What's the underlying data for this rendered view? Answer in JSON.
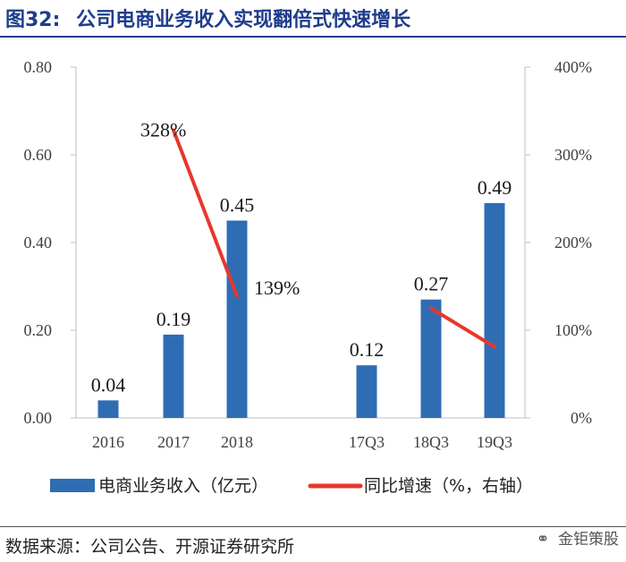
{
  "header": {
    "figure_number": "图32:",
    "title": "公司电商业务收入实现翻倍式快速增长"
  },
  "footer": {
    "source": "数据来源：公司公告、开源证券研究所",
    "watermark": "金钜策股",
    "watermark_icon": "wechat-icon"
  },
  "colors": {
    "bar": "#2e6db4",
    "line": "#e8372c",
    "axis": "#bfbfbf",
    "title": "#1f3d8c"
  },
  "chart_data": {
    "type": "bar",
    "title": "公司电商业务收入实现翻倍式快速增长",
    "categories": [
      "2016",
      "2017",
      "2018",
      "17Q3",
      "18Q3",
      "19Q3"
    ],
    "series": [
      {
        "name": "电商业务收入（亿元）",
        "type": "bar",
        "axis": "left",
        "values": [
          0.04,
          0.19,
          0.45,
          0.12,
          0.27,
          0.49
        ],
        "labels": [
          "0.04",
          "0.19",
          "0.45",
          "0.12",
          "0.27",
          "0.49"
        ]
      },
      {
        "name": "同比增速（%，右轴）",
        "type": "line",
        "axis": "right",
        "segments": [
          {
            "categories": [
              "2017",
              "2018"
            ],
            "values": [
              328,
              139
            ],
            "labels": [
              "328%",
              "139%"
            ]
          },
          {
            "categories": [
              "18Q3",
              "19Q3"
            ],
            "values": [
              125,
              81
            ],
            "labels": [
              "",
              ""
            ]
          }
        ]
      }
    ],
    "y_left": {
      "min": 0,
      "max": 0.8,
      "ticks": [
        "0.00",
        "0.20",
        "0.40",
        "0.60",
        "0.80"
      ]
    },
    "y_right": {
      "min": 0,
      "max": 400,
      "ticks": [
        "0%",
        "100%",
        "200%",
        "300%",
        "400%"
      ]
    },
    "grid": false,
    "legend": {
      "position": "bottom",
      "entries": [
        "电商业务收入（亿元）",
        "同比增速（%，右轴）"
      ]
    }
  }
}
